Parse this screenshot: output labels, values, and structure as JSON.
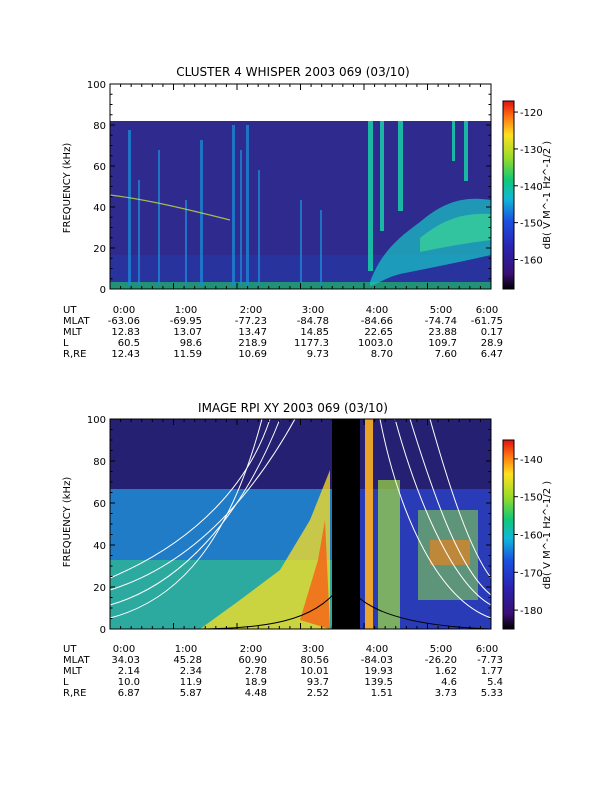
{
  "chart_data": [
    {
      "type": "heatmap",
      "title": "CLUSTER 4 WHISPER 2003 069 (03/10)",
      "ylabel": "FREQUENCY (kHz)",
      "ylim": [
        0,
        100
      ],
      "y_ticks": [
        "0",
        "20",
        "40",
        "60",
        "80",
        "100"
      ],
      "data_top_khz": 80,
      "colorbar": {
        "label": "dB( V M^-1 Hz^-1/2 )",
        "range": [
          -168,
          -117
        ],
        "ticks": [
          "-120",
          "-130",
          "-140",
          "-150",
          "-160"
        ]
      },
      "ephemeris": {
        "rows": [
          "UT",
          "MLAT",
          "MLT",
          "L",
          "R,RE"
        ],
        "columns": [
          [
            "0:00",
            "-63.06",
            "12.83",
            "60.5",
            "12.43"
          ],
          [
            "1:00",
            "-69.95",
            "13.07",
            "98.6",
            "11.59"
          ],
          [
            "2:00",
            "-77.23",
            "13.47",
            "218.9",
            "10.69"
          ],
          [
            "3:00",
            "-84.78",
            "14.85",
            "1177.3",
            "9.73"
          ],
          [
            "4:00",
            "-84.66",
            "22.65",
            "1003.0",
            "8.70"
          ],
          [
            "5:00",
            "-74.74",
            "23.88",
            "109.7",
            "7.60"
          ],
          [
            "6:00",
            "-61.75",
            "0.17",
            "28.9",
            "6.47"
          ]
        ]
      }
    },
    {
      "type": "heatmap",
      "title": "IMAGE RPI XY 2003 069 (03/10)",
      "ylabel": "FREQUENCY (kHz)",
      "ylim": [
        0,
        100
      ],
      "y_ticks": [
        "0",
        "20",
        "40",
        "60",
        "80",
        "100"
      ],
      "colorbar": {
        "label": "dB( V M^-1 Hz^-1/2 )",
        "range": [
          -185,
          -135
        ],
        "ticks": [
          "-140",
          "-150",
          "-160",
          "-170",
          "-180"
        ]
      },
      "ephemeris": {
        "rows": [
          "UT",
          "MLAT",
          "MLT",
          "L",
          "R,RE"
        ],
        "columns": [
          [
            "0:00",
            "34.03",
            "2.14",
            "10.0",
            "6.87"
          ],
          [
            "1:00",
            "45.28",
            "2.34",
            "11.9",
            "5.87"
          ],
          [
            "2:00",
            "60.90",
            "2.78",
            "18.9",
            "4.48"
          ],
          [
            "3:00",
            "80.56",
            "10.01",
            "93.7",
            "2.52"
          ],
          [
            "4:00",
            "-84.03",
            "19.93",
            "139.5",
            "1.51"
          ],
          [
            "5:00",
            "-26.20",
            "1.62",
            "4.6",
            "3.73"
          ],
          [
            "6:00",
            "-7.73",
            "1.77",
            "5.4",
            "5.33"
          ]
        ]
      }
    }
  ]
}
